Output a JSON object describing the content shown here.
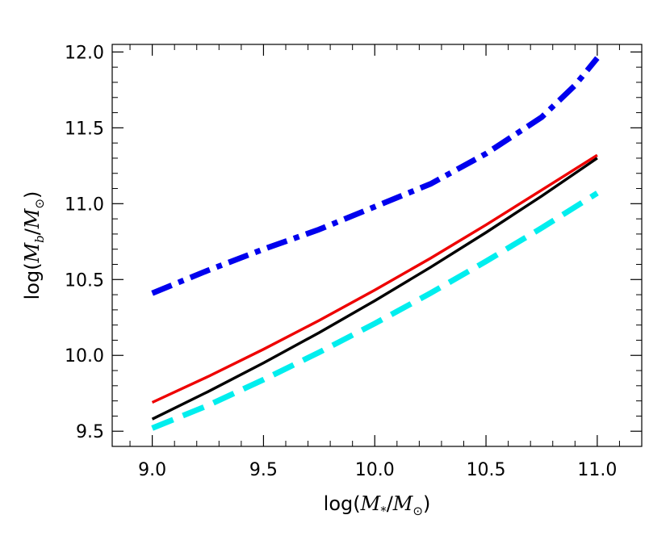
{
  "chart_data": {
    "type": "line",
    "title": "",
    "xlabel": "log(M*/M⊙)",
    "ylabel": "log(Mb/M⊙)",
    "xlim": [
      8.82,
      11.2
    ],
    "ylim": [
      9.4,
      12.05
    ],
    "x_ticks": [
      9.0,
      9.5,
      10.0,
      10.5,
      11.0
    ],
    "x_tick_labels": [
      "9.0",
      "9.5",
      "10.0",
      "10.5",
      "11.0"
    ],
    "y_ticks": [
      9.5,
      10.0,
      10.5,
      11.0,
      11.5,
      12.0
    ],
    "y_tick_labels": [
      "9.5",
      "10.0",
      "10.5",
      "11.0",
      "11.5",
      "12.0"
    ],
    "grid": false,
    "legend": "none",
    "series": [
      {
        "color": "#0000ee",
        "style": "dash-dot",
        "x": [
          9.0,
          9.25,
          9.5,
          9.75,
          10.0,
          10.25,
          10.5,
          10.75,
          10.9,
          11.0
        ],
        "y": [
          10.41,
          10.56,
          10.7,
          10.83,
          10.98,
          11.13,
          11.33,
          11.57,
          11.78,
          11.96
        ]
      },
      {
        "color": "#ee0000",
        "style": "solid",
        "x": [
          9.0,
          9.25,
          9.5,
          9.75,
          10.0,
          10.25,
          10.5,
          10.75,
          11.0
        ],
        "y": [
          9.69,
          9.86,
          10.04,
          10.23,
          10.43,
          10.64,
          10.86,
          11.09,
          11.32
        ]
      },
      {
        "color": "#000000",
        "style": "solid",
        "x": [
          9.0,
          9.25,
          9.5,
          9.75,
          10.0,
          10.25,
          10.5,
          10.75,
          11.0
        ],
        "y": [
          9.58,
          9.76,
          9.95,
          10.15,
          10.36,
          10.58,
          10.81,
          11.05,
          11.3
        ]
      },
      {
        "color": "#00eeee",
        "style": "dashed",
        "x": [
          9.0,
          9.25,
          9.5,
          9.75,
          10.0,
          10.25,
          10.5,
          10.75,
          11.0
        ],
        "y": [
          9.52,
          9.67,
          9.84,
          10.02,
          10.21,
          10.41,
          10.62,
          10.84,
          11.07
        ]
      }
    ]
  }
}
